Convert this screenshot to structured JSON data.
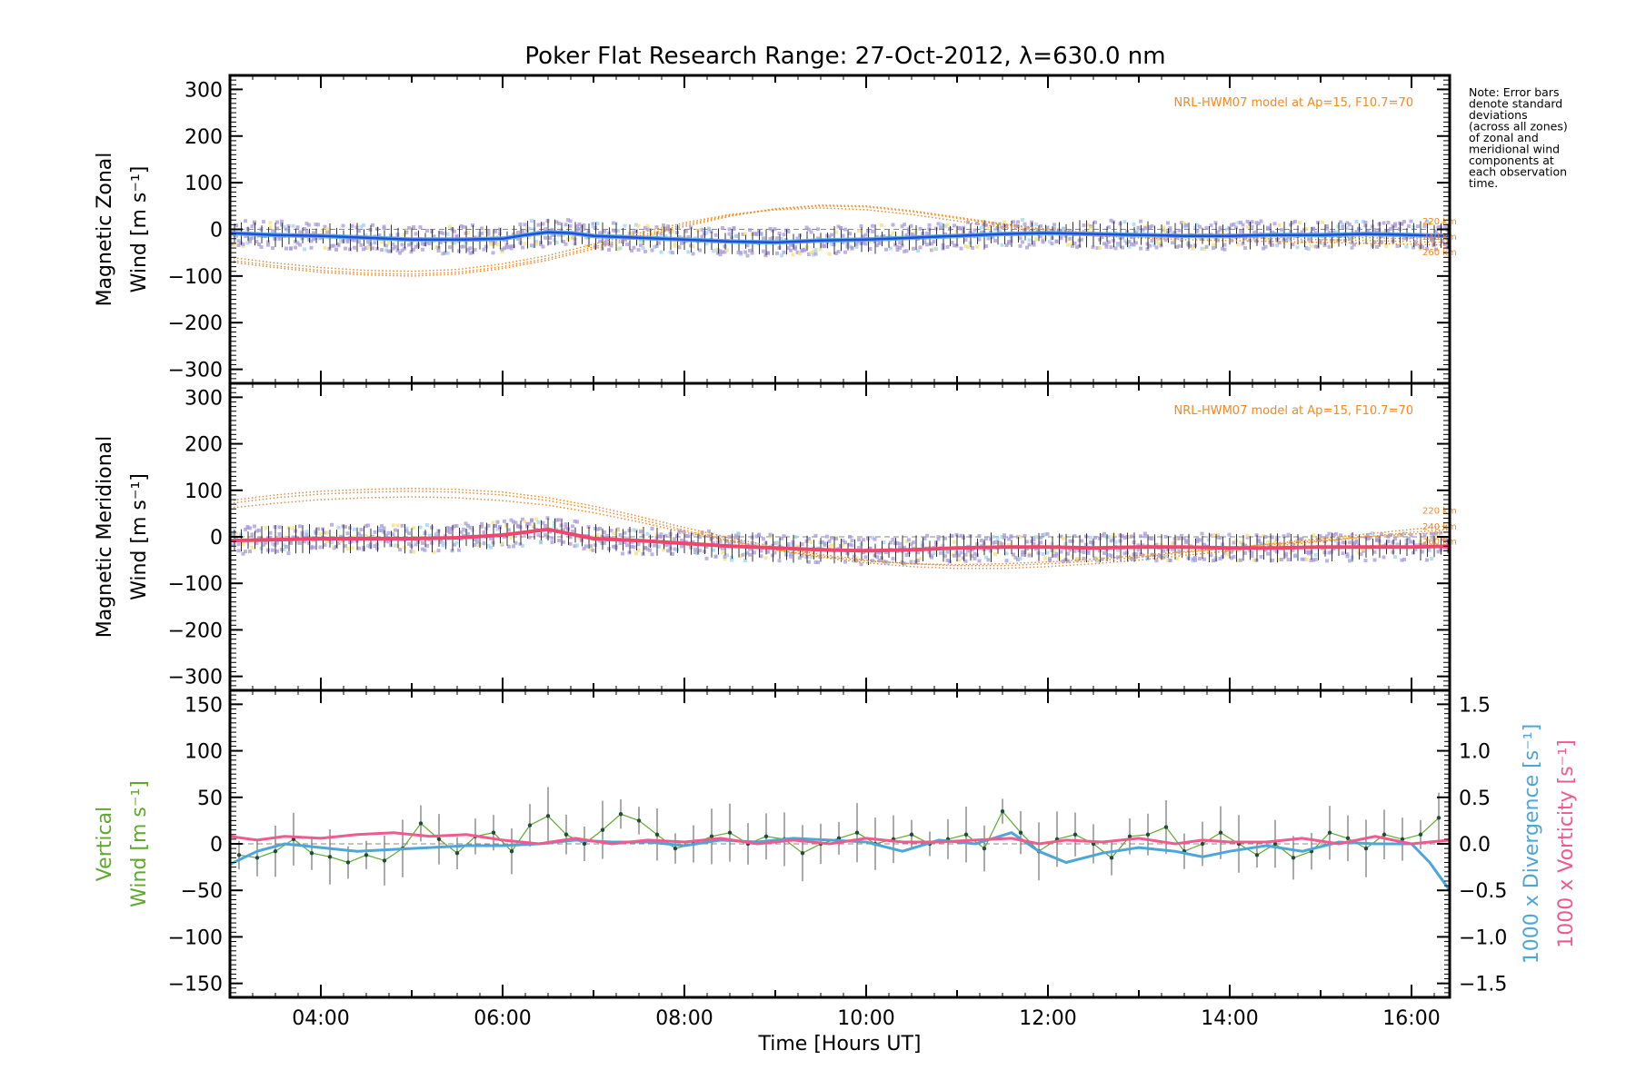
{
  "title": "Poker Flat Research Range: 27-Oct-2012, λ=630.0 nm",
  "note": [
    "Note: Error bars",
    "denote standard",
    "deviations",
    "(across all zones)",
    "of zonal and",
    "meridional wind",
    "components at",
    "each observation",
    "time."
  ],
  "colors": {
    "zonal": "#1f4fd8",
    "zonal_light": "#5aa8e8",
    "meridional": "#f0466e",
    "vertical": "#5fa82e",
    "divergence": "#4da6d8",
    "vorticity": "#f05a8c",
    "model": "#f08a24",
    "zone_scatter": "#a89ad8"
  },
  "chart_data": [
    {
      "type": "line",
      "panel": "zonal",
      "ylabel_line1": "Magnetic Zonal",
      "ylabel_line2": "Wind [m s⁻¹]",
      "ylim": [
        -330,
        330
      ],
      "xlim": [
        3.0,
        16.42
      ],
      "y_ticks": [
        -300,
        -200,
        -100,
        0,
        100,
        200,
        300
      ],
      "x_tick_labels": [],
      "model_label": "NRL-HWM07 model at Ap=15, F10.7=70",
      "altitude_labels": [
        "220 km",
        "240 km",
        "260 km"
      ],
      "series": [
        {
          "name": "",
          "role": "mean",
          "x": [
            3.0,
            3.5,
            4.0,
            4.5,
            5.0,
            5.5,
            6.0,
            6.25,
            6.5,
            6.75,
            7.0,
            7.5,
            8.0,
            8.5,
            9.0,
            9.5,
            10.0,
            10.5,
            11.0,
            11.5,
            12.0,
            12.5,
            13.0,
            13.5,
            14.0,
            14.5,
            15.0,
            15.5,
            16.0,
            16.42
          ],
          "y": [
            -8,
            -12,
            -14,
            -18,
            -22,
            -22,
            -20,
            -12,
            -6,
            -8,
            -14,
            -18,
            -22,
            -26,
            -28,
            -24,
            -22,
            -18,
            -14,
            -10,
            -8,
            -10,
            -12,
            -14,
            -14,
            -12,
            -12,
            -10,
            -12,
            -14
          ]
        },
        {
          "name": "",
          "role": "model",
          "x": [
            3.0,
            3.5,
            4.0,
            4.5,
            5.0,
            5.5,
            6.0,
            6.5,
            7.0,
            7.5,
            8.0,
            8.5,
            9.0,
            9.5,
            10.0,
            10.5,
            11.0,
            11.5,
            12.0,
            12.5,
            13.0,
            13.5,
            14.0,
            14.5,
            15.0,
            15.5,
            16.0,
            16.42
          ],
          "y": [
            -70,
            -82,
            -92,
            -98,
            -100,
            -96,
            -84,
            -66,
            -42,
            -18,
            6,
            28,
            44,
            52,
            50,
            40,
            26,
            12,
            0,
            -8,
            -12,
            -14,
            -14,
            -14,
            -16,
            -18,
            -20,
            -22
          ]
        },
        {
          "name": "",
          "role": "model",
          "x": [
            3.0,
            3.5,
            4.0,
            4.5,
            5.0,
            5.5,
            6.0,
            6.5,
            7.0,
            7.5,
            8.0,
            8.5,
            9.0,
            9.5,
            10.0,
            10.5,
            11.0,
            11.5,
            12.0,
            12.5,
            13.0,
            13.5,
            14.0,
            14.5,
            15.0,
            15.5,
            16.0,
            16.42
          ],
          "y": [
            -66,
            -78,
            -88,
            -94,
            -96,
            -92,
            -80,
            -62,
            -38,
            -14,
            10,
            30,
            44,
            50,
            48,
            38,
            24,
            10,
            -2,
            -10,
            -14,
            -16,
            -18,
            -20,
            -22,
            -24,
            -26,
            -28
          ]
        },
        {
          "name": "",
          "role": "model",
          "x": [
            3.0,
            3.5,
            4.0,
            4.5,
            5.0,
            5.5,
            6.0,
            6.5,
            7.0,
            7.5,
            8.0,
            8.5,
            9.0,
            9.5,
            10.0,
            10.5,
            11.0,
            11.5,
            12.0,
            12.5,
            13.0,
            13.5,
            14.0,
            14.5,
            15.0,
            15.5,
            16.0,
            16.42
          ],
          "y": [
            -60,
            -72,
            -82,
            -88,
            -90,
            -86,
            -74,
            -56,
            -32,
            -8,
            14,
            32,
            42,
            46,
            42,
            32,
            18,
            4,
            -6,
            -14,
            -18,
            -22,
            -24,
            -26,
            -28,
            -30,
            -32,
            -34
          ]
        }
      ]
    },
    {
      "type": "line",
      "panel": "meridional",
      "ylabel_line1": "Magnetic Meridional",
      "ylabel_line2": "Wind [m s⁻¹]",
      "ylim": [
        -330,
        330
      ],
      "xlim": [
        3.0,
        16.42
      ],
      "y_ticks": [
        -300,
        -200,
        -100,
        0,
        100,
        200,
        300
      ],
      "x_tick_labels": [],
      "model_label": "NRL-HWM07 model at Ap=15, F10.7=70",
      "altitude_labels": [
        "220 km",
        "240 km",
        "260 km"
      ],
      "series": [
        {
          "name": "",
          "role": "mean",
          "x": [
            3.0,
            3.5,
            4.0,
            4.5,
            5.0,
            5.5,
            6.0,
            6.25,
            6.5,
            6.75,
            7.0,
            7.5,
            8.0,
            8.5,
            9.0,
            9.5,
            10.0,
            10.5,
            11.0,
            11.5,
            12.0,
            12.5,
            13.0,
            13.5,
            14.0,
            14.5,
            15.0,
            15.5,
            16.0,
            16.42
          ],
          "y": [
            -8,
            -6,
            -4,
            -4,
            -4,
            -2,
            4,
            10,
            16,
            6,
            -4,
            -8,
            -14,
            -20,
            -24,
            -28,
            -30,
            -28,
            -24,
            -22,
            -22,
            -24,
            -22,
            -22,
            -24,
            -24,
            -22,
            -22,
            -22,
            -20
          ]
        },
        {
          "name": "",
          "role": "model",
          "x": [
            3.0,
            3.5,
            4.0,
            4.5,
            5.0,
            5.5,
            6.0,
            6.5,
            7.0,
            7.5,
            8.0,
            8.5,
            9.0,
            9.5,
            10.0,
            10.5,
            11.0,
            11.5,
            12.0,
            12.5,
            13.0,
            13.5,
            14.0,
            14.5,
            15.0,
            15.5,
            16.0,
            16.42
          ],
          "y": [
            78,
            90,
            98,
            102,
            104,
            102,
            96,
            84,
            66,
            44,
            20,
            -2,
            -22,
            -38,
            -50,
            -58,
            -62,
            -62,
            -58,
            -52,
            -44,
            -34,
            -24,
            -14,
            -4,
            6,
            16,
            24
          ]
        },
        {
          "name": "",
          "role": "model",
          "x": [
            3.0,
            3.5,
            4.0,
            4.5,
            5.0,
            5.5,
            6.0,
            6.5,
            7.0,
            7.5,
            8.0,
            8.5,
            9.0,
            9.5,
            10.0,
            10.5,
            11.0,
            11.5,
            12.0,
            12.5,
            13.0,
            13.5,
            14.0,
            14.5,
            15.0,
            15.5,
            16.0,
            16.42
          ],
          "y": [
            72,
            84,
            92,
            96,
            98,
            96,
            90,
            78,
            60,
            38,
            14,
            -8,
            -28,
            -44,
            -56,
            -64,
            -68,
            -68,
            -64,
            -58,
            -50,
            -40,
            -30,
            -20,
            -10,
            0,
            10,
            16
          ]
        },
        {
          "name": "",
          "role": "model",
          "x": [
            3.0,
            3.5,
            4.0,
            4.5,
            5.0,
            5.5,
            6.0,
            6.5,
            7.0,
            7.5,
            8.0,
            8.5,
            9.0,
            9.5,
            10.0,
            10.5,
            11.0,
            11.5,
            12.0,
            12.5,
            13.0,
            13.5,
            14.0,
            14.5,
            15.0,
            15.5,
            16.0,
            16.42
          ],
          "y": [
            62,
            72,
            80,
            84,
            86,
            84,
            78,
            68,
            52,
            32,
            10,
            -10,
            -28,
            -42,
            -52,
            -58,
            -60,
            -58,
            -54,
            -48,
            -40,
            -32,
            -24,
            -16,
            -8,
            0,
            6,
            10
          ]
        }
      ]
    },
    {
      "type": "line",
      "panel": "vertical",
      "ylabel_line1": "Vertical",
      "ylabel_line2": "Wind [m s⁻¹]",
      "ylim": [
        -165,
        165
      ],
      "xlim": [
        3.0,
        16.42
      ],
      "y_ticks": [
        -150,
        -100,
        -50,
        0,
        50,
        100,
        150
      ],
      "x_ticks": [
        4,
        6,
        8,
        10,
        12,
        14,
        16
      ],
      "x_tick_labels": [
        "04:00",
        "06:00",
        "08:00",
        "10:00",
        "12:00",
        "14:00",
        "16:00"
      ],
      "xlabel": "Time [Hours UT]",
      "y2lim": [
        -1.65,
        1.65
      ],
      "y2_ticks": [
        -1.5,
        -1.0,
        -0.5,
        0.0,
        0.5,
        1.0,
        1.5
      ],
      "y2_tick_labels": [
        "−1.5",
        "−1.0",
        "−0.5",
        "0.0",
        "0.5",
        "1.0",
        "1.5"
      ],
      "y2label_divergence": "1000 x Divergence [s⁻¹]",
      "y2label_vorticity": "1000 x Vorticity [s⁻¹]",
      "series": [
        {
          "name": "",
          "role": "vertical",
          "x": [
            3.1,
            3.3,
            3.5,
            3.7,
            3.9,
            4.1,
            4.3,
            4.5,
            4.7,
            4.9,
            5.1,
            5.3,
            5.5,
            5.7,
            5.9,
            6.1,
            6.3,
            6.5,
            6.7,
            6.9,
            7.1,
            7.3,
            7.5,
            7.7,
            7.9,
            8.1,
            8.3,
            8.5,
            8.7,
            8.9,
            9.1,
            9.3,
            9.5,
            9.7,
            9.9,
            10.1,
            10.3,
            10.5,
            10.7,
            10.9,
            11.1,
            11.3,
            11.5,
            11.7,
            11.9,
            12.1,
            12.3,
            12.5,
            12.7,
            12.9,
            13.1,
            13.3,
            13.5,
            13.7,
            13.9,
            14.1,
            14.3,
            14.5,
            14.7,
            14.9,
            15.1,
            15.3,
            15.5,
            15.7,
            15.9,
            16.1,
            16.3
          ],
          "y": [
            -12,
            -15,
            -8,
            5,
            -10,
            -14,
            -20,
            -12,
            -18,
            -5,
            22,
            5,
            -10,
            8,
            12,
            -8,
            20,
            30,
            10,
            0,
            15,
            32,
            25,
            10,
            -5,
            0,
            8,
            12,
            0,
            8,
            5,
            -10,
            0,
            6,
            12,
            0,
            5,
            10,
            0,
            5,
            10,
            -5,
            35,
            12,
            -8,
            5,
            10,
            0,
            -15,
            8,
            10,
            18,
            -8,
            0,
            12,
            0,
            -12,
            0,
            -15,
            -8,
            12,
            6,
            -5,
            10,
            5,
            10,
            28
          ]
        },
        {
          "name": "",
          "role": "divergence",
          "x": [
            3.0,
            3.3,
            3.6,
            4.0,
            4.4,
            4.8,
            5.2,
            5.6,
            6.0,
            6.4,
            6.8,
            7.2,
            7.6,
            8.0,
            8.4,
            8.8,
            9.2,
            9.6,
            10.0,
            10.4,
            10.8,
            11.2,
            11.6,
            11.9,
            12.2,
            12.6,
            13.0,
            13.4,
            13.7,
            14.0,
            14.4,
            14.8,
            15.2,
            15.6,
            16.0,
            16.2,
            16.42
          ],
          "y": [
            -0.22,
            -0.08,
            0.0,
            -0.04,
            -0.08,
            -0.06,
            -0.04,
            -0.02,
            -0.02,
            0.0,
            0.04,
            0.02,
            0.02,
            -0.02,
            0.04,
            0.02,
            0.06,
            0.04,
            0.02,
            -0.08,
            0.04,
            0.0,
            0.12,
            -0.08,
            -0.2,
            -0.1,
            -0.04,
            -0.08,
            -0.14,
            -0.08,
            -0.02,
            -0.08,
            0.02,
            0.0,
            0.0,
            -0.2,
            -0.5
          ]
        },
        {
          "name": "",
          "role": "vorticity",
          "x": [
            3.0,
            3.3,
            3.6,
            4.0,
            4.4,
            4.8,
            5.2,
            5.6,
            6.0,
            6.4,
            6.8,
            7.2,
            7.6,
            8.0,
            8.4,
            8.8,
            9.2,
            9.6,
            10.0,
            10.4,
            10.8,
            11.2,
            11.6,
            11.9,
            12.2,
            12.6,
            13.0,
            13.4,
            13.7,
            14.0,
            14.4,
            14.8,
            15.2,
            15.6,
            16.0,
            16.2,
            16.42
          ],
          "y": [
            0.08,
            0.04,
            0.08,
            0.06,
            0.1,
            0.12,
            0.08,
            0.1,
            0.04,
            0.0,
            0.06,
            0.0,
            0.04,
            0.02,
            0.06,
            0.0,
            0.04,
            0.0,
            0.06,
            0.02,
            0.02,
            0.04,
            0.06,
            0.0,
            0.04,
            0.02,
            0.06,
            0.0,
            0.04,
            0.02,
            0.02,
            0.06,
            0.0,
            0.08,
            0.0,
            0.02,
            0.04
          ]
        }
      ]
    }
  ]
}
